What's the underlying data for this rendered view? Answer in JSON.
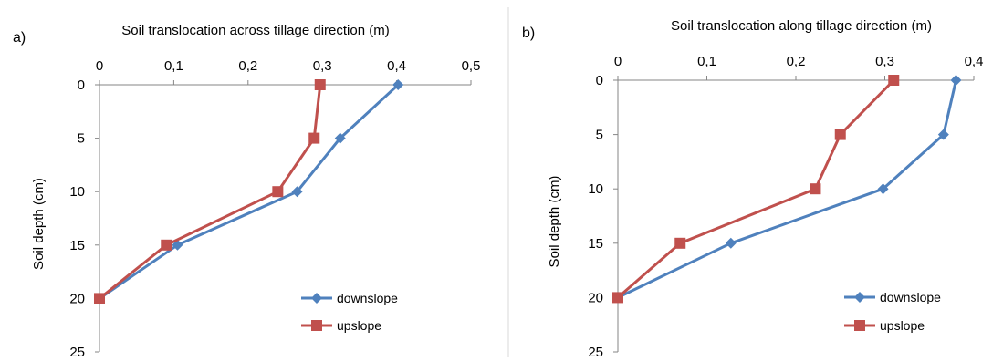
{
  "chart_data": [
    {
      "type": "line",
      "panel_label": "a)",
      "title": "Soil translocation across tillage direction (m)",
      "xlabel": "Soil translocation across tillage direction (m)",
      "ylabel": "Soil depth (cm)",
      "xlim": [
        0,
        0.5
      ],
      "ylim": [
        0,
        25
      ],
      "y_inverted": true,
      "x_ticks": [
        0,
        0.1,
        0.2,
        0.3,
        0.4,
        0.5
      ],
      "x_tick_labels": [
        "0",
        "0,1",
        "0,2",
        "0,3",
        "0,4",
        "0,5"
      ],
      "y_ticks": [
        0,
        5,
        10,
        15,
        20,
        25
      ],
      "y_tick_labels": [
        "0",
        "5",
        "10",
        "15",
        "20",
        "25"
      ],
      "x_axis_position": "top",
      "grid": false,
      "legend_position": "bottom-right",
      "series": [
        {
          "name": "downslope",
          "marker": "diamond",
          "color": "#4F81BD",
          "x": [
            0.402,
            0.324,
            0.266,
            0.105,
            0.0
          ],
          "y": [
            0,
            5,
            10,
            15,
            20
          ]
        },
        {
          "name": "upslope",
          "marker": "square",
          "color": "#C0504D",
          "x": [
            0.297,
            0.289,
            0.24,
            0.09,
            0.0
          ],
          "y": [
            0,
            5,
            10,
            15,
            20
          ]
        }
      ]
    },
    {
      "type": "line",
      "panel_label": "b)",
      "title": "Soil translocation along tillage direction (m)",
      "xlabel": "Soil translocation along tillage direction (m)",
      "ylabel": "Soil depth (cm)",
      "xlim": [
        0,
        0.4
      ],
      "ylim": [
        0,
        25
      ],
      "y_inverted": true,
      "x_ticks": [
        0,
        0.1,
        0.2,
        0.3,
        0.4
      ],
      "x_tick_labels": [
        "0",
        "0,1",
        "0,2",
        "0,3",
        "0,4"
      ],
      "y_ticks": [
        0,
        5,
        10,
        15,
        20,
        25
      ],
      "y_tick_labels": [
        "0",
        "5",
        "10",
        "15",
        "20",
        "25"
      ],
      "x_axis_position": "top",
      "grid": false,
      "legend_position": "bottom-right",
      "series": [
        {
          "name": "downslope",
          "marker": "diamond",
          "color": "#4F81BD",
          "x": [
            0.38,
            0.366,
            0.298,
            0.127,
            0.0
          ],
          "y": [
            0,
            5,
            10,
            15,
            20
          ]
        },
        {
          "name": "upslope",
          "marker": "square",
          "color": "#C0504D",
          "x": [
            0.31,
            0.25,
            0.222,
            0.07,
            0.0
          ],
          "y": [
            0,
            5,
            10,
            15,
            20
          ]
        }
      ]
    }
  ]
}
